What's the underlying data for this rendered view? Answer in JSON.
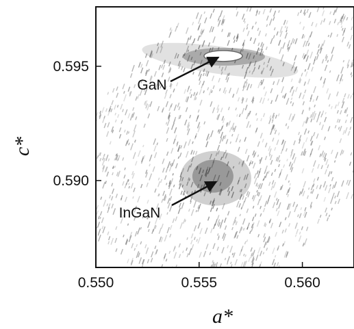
{
  "chart_data": {
    "type": "heatmap",
    "title": "",
    "xlabel": "a*",
    "ylabel": "c*",
    "xlim": [
      0.55,
      0.5625
    ],
    "ylim": [
      0.5862,
      0.5976
    ],
    "x_ticks": [
      {
        "value": 0.55,
        "label": "0.550"
      },
      {
        "value": 0.555,
        "label": "0.555"
      },
      {
        "value": 0.56,
        "label": "0.560"
      }
    ],
    "y_ticks": [
      {
        "value": 0.595,
        "label": "0.595"
      },
      {
        "value": 0.59,
        "label": "0.590"
      }
    ],
    "grid": false,
    "colors": {
      "intensity": "#555555",
      "frame": "#111111"
    },
    "peaks": [
      {
        "name": "GaN",
        "a": 0.5562,
        "c": 0.5956
      },
      {
        "name": "InGaN",
        "a": 0.5558,
        "c": 0.5901
      }
    ],
    "annotations": [
      {
        "text": "GaN",
        "points_to": "GaN"
      },
      {
        "text": "InGaN",
        "points_to": "InGaN"
      }
    ]
  }
}
